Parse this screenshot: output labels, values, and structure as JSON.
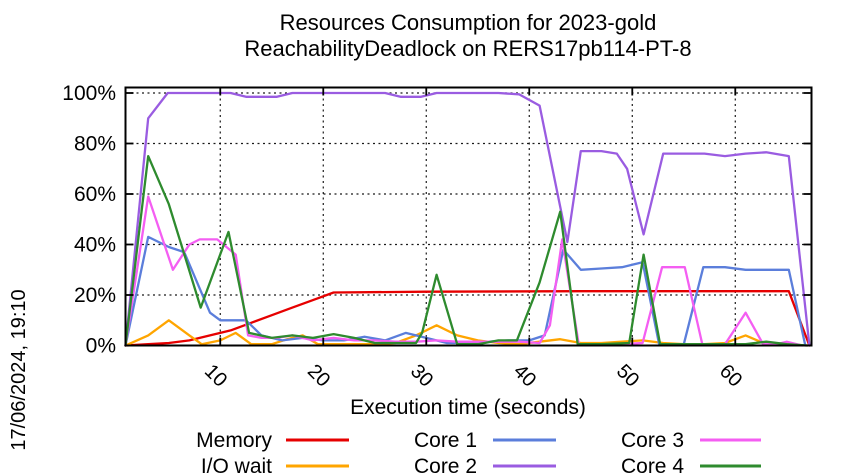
{
  "header": {
    "title_line1": "Resources Consumption for 2023-gold",
    "title_line2": "ReachabilityDeadlock on RERS17pb114-PT-8"
  },
  "timestamp_label": "17/06/2024, 19:10",
  "axes": {
    "xlabel": "Execution time (seconds)",
    "y_tick_labels": [
      "0%",
      "20%",
      "40%",
      "60%",
      "80%",
      "100%"
    ],
    "x_tick_labels": [
      "10",
      "20",
      "30",
      "40",
      "50",
      "60"
    ]
  },
  "chart_data": {
    "type": "line",
    "title": "Resources Consumption for 2023-gold ReachabilityDeadlock on RERS17pb114-PT-8",
    "xlabel": "Execution time (seconds)",
    "ylabel": "",
    "xlim": [
      0.8,
      67.4
    ],
    "ylim": [
      0,
      100
    ],
    "x_ticks": [
      10,
      20,
      30,
      40,
      50,
      60
    ],
    "y_ticks": [
      0,
      20,
      40,
      60,
      80,
      100
    ],
    "grid": true,
    "grid_style": "dotted",
    "legend_position": "bottom",
    "frame_color": "#000000",
    "series": [
      {
        "name": "Memory",
        "color": "#e60000",
        "points": [
          [
            0.8,
            0
          ],
          [
            3,
            0.5
          ],
          [
            5,
            1
          ],
          [
            7,
            2
          ],
          [
            9,
            4
          ],
          [
            11,
            6
          ],
          [
            13,
            9
          ],
          [
            15,
            12
          ],
          [
            17,
            15
          ],
          [
            19,
            18
          ],
          [
            21,
            21
          ],
          [
            30,
            21.3
          ],
          [
            45,
            21.5
          ],
          [
            65.2,
            21.5
          ],
          [
            67.2,
            0
          ]
        ]
      },
      {
        "name": "I/O wait",
        "color": "#ffa500",
        "points": [
          [
            0.8,
            0
          ],
          [
            3,
            4
          ],
          [
            5,
            10
          ],
          [
            7,
            4
          ],
          [
            8.2,
            0.5
          ],
          [
            10,
            2
          ],
          [
            11.5,
            5
          ],
          [
            13,
            0.5
          ],
          [
            15,
            0.5
          ],
          [
            16.5,
            2.5
          ],
          [
            18,
            4
          ],
          [
            19.5,
            0.5
          ],
          [
            21,
            0.5
          ],
          [
            23,
            0.5
          ],
          [
            25,
            0.5
          ],
          [
            27,
            1
          ],
          [
            29,
            4
          ],
          [
            31,
            8
          ],
          [
            33,
            4
          ],
          [
            35,
            2
          ],
          [
            37,
            1
          ],
          [
            39,
            0.5
          ],
          [
            41,
            1.5
          ],
          [
            43,
            2.5
          ],
          [
            45,
            1
          ],
          [
            47,
            1
          ],
          [
            49,
            1.5
          ],
          [
            51,
            2
          ],
          [
            53,
            1
          ],
          [
            55,
            0.5
          ],
          [
            57,
            0.5
          ],
          [
            59,
            1
          ],
          [
            61,
            4
          ],
          [
            63,
            0.5
          ],
          [
            65,
            0.5
          ],
          [
            67,
            0
          ]
        ]
      },
      {
        "name": "Core 1",
        "color": "#5b7edb",
        "points": [
          [
            0.8,
            0
          ],
          [
            3,
            43
          ],
          [
            5,
            39
          ],
          [
            6.5,
            37
          ],
          [
            9,
            13
          ],
          [
            10,
            10
          ],
          [
            12.5,
            10
          ],
          [
            14,
            4
          ],
          [
            16,
            2
          ],
          [
            18,
            3
          ],
          [
            20,
            2
          ],
          [
            22,
            2
          ],
          [
            24,
            3.5
          ],
          [
            26,
            2
          ],
          [
            28,
            5
          ],
          [
            30,
            3
          ],
          [
            32,
            1
          ],
          [
            34,
            1
          ],
          [
            36,
            1.5
          ],
          [
            38,
            2
          ],
          [
            40,
            2
          ],
          [
            41.5,
            4
          ],
          [
            43.3,
            38
          ],
          [
            45,
            30
          ],
          [
            47,
            30.5
          ],
          [
            49,
            31
          ],
          [
            51,
            33
          ],
          [
            52.6,
            0.5
          ],
          [
            55,
            0.5
          ],
          [
            56.9,
            31
          ],
          [
            59,
            31
          ],
          [
            61,
            30
          ],
          [
            63,
            30
          ],
          [
            65.2,
            30
          ],
          [
            66.8,
            0
          ]
        ]
      },
      {
        "name": "Core 2",
        "color": "#9a5ce1",
        "points": [
          [
            0.8,
            0
          ],
          [
            3,
            90
          ],
          [
            4.9,
            100
          ],
          [
            8,
            100
          ],
          [
            11,
            100
          ],
          [
            12.5,
            98.5
          ],
          [
            15.5,
            98.5
          ],
          [
            17,
            100
          ],
          [
            26,
            100
          ],
          [
            27.5,
            98.5
          ],
          [
            29.5,
            98.5
          ],
          [
            31,
            100
          ],
          [
            37,
            100
          ],
          [
            39,
            99.5
          ],
          [
            41,
            95
          ],
          [
            43.7,
            41
          ],
          [
            45,
            77
          ],
          [
            47,
            77
          ],
          [
            48.5,
            76
          ],
          [
            49.5,
            70
          ],
          [
            51.1,
            44
          ],
          [
            53,
            76
          ],
          [
            55,
            76
          ],
          [
            57,
            76
          ],
          [
            59,
            75
          ],
          [
            61,
            76
          ],
          [
            63,
            76.5
          ],
          [
            65.2,
            75
          ],
          [
            67.2,
            0
          ]
        ]
      },
      {
        "name": "Core 3",
        "color": "#f45ef2",
        "points": [
          [
            0.8,
            0
          ],
          [
            3,
            59
          ],
          [
            5.4,
            30
          ],
          [
            7,
            40
          ],
          [
            8,
            42
          ],
          [
            9.7,
            42
          ],
          [
            11.5,
            36
          ],
          [
            12.7,
            4
          ],
          [
            14,
            3
          ],
          [
            15.5,
            3
          ],
          [
            17,
            4
          ],
          [
            19,
            2
          ],
          [
            21,
            3
          ],
          [
            23,
            2
          ],
          [
            25,
            2
          ],
          [
            27,
            1.5
          ],
          [
            29,
            1.5
          ],
          [
            31,
            2
          ],
          [
            33,
            1.5
          ],
          [
            35,
            1.5
          ],
          [
            37,
            1.5
          ],
          [
            39,
            1.5
          ],
          [
            41,
            1
          ],
          [
            42,
            8
          ],
          [
            43.2,
            42
          ],
          [
            44.8,
            0.5
          ],
          [
            47,
            0.5
          ],
          [
            49,
            0.5
          ],
          [
            51,
            1
          ],
          [
            52.9,
            31
          ],
          [
            55.1,
            31
          ],
          [
            56.8,
            0.5
          ],
          [
            59,
            0.5
          ],
          [
            61,
            13
          ],
          [
            62.7,
            0.5
          ],
          [
            64,
            0.5
          ],
          [
            65,
            1.5
          ],
          [
            66.5,
            0
          ]
        ]
      },
      {
        "name": "Core 4",
        "color": "#2e8b2e",
        "points": [
          [
            0.8,
            0
          ],
          [
            3,
            75
          ],
          [
            5,
            56
          ],
          [
            8.1,
            15
          ],
          [
            10.8,
            45
          ],
          [
            12.8,
            5
          ],
          [
            15,
            3
          ],
          [
            17,
            4
          ],
          [
            19,
            3
          ],
          [
            21,
            4.5
          ],
          [
            23,
            3
          ],
          [
            25,
            1
          ],
          [
            27,
            1
          ],
          [
            29,
            1
          ],
          [
            29.6,
            5
          ],
          [
            31,
            28
          ],
          [
            33,
            0.5
          ],
          [
            35,
            0.5
          ],
          [
            37,
            2
          ],
          [
            38.8,
            2
          ],
          [
            41,
            25
          ],
          [
            43,
            53
          ],
          [
            44.7,
            0.5
          ],
          [
            47,
            0.5
          ],
          [
            49.7,
            1
          ],
          [
            51.1,
            36
          ],
          [
            52.7,
            0.5
          ],
          [
            55,
            0.5
          ],
          [
            57,
            0.5
          ],
          [
            59,
            0.5
          ],
          [
            61,
            0.5
          ],
          [
            63,
            1.5
          ],
          [
            65,
            0.5
          ],
          [
            67,
            0
          ]
        ]
      }
    ],
    "legend_order": [
      "Memory",
      "I/O wait",
      "Core 1",
      "Core 2",
      "Core 3",
      "Core 4"
    ]
  }
}
